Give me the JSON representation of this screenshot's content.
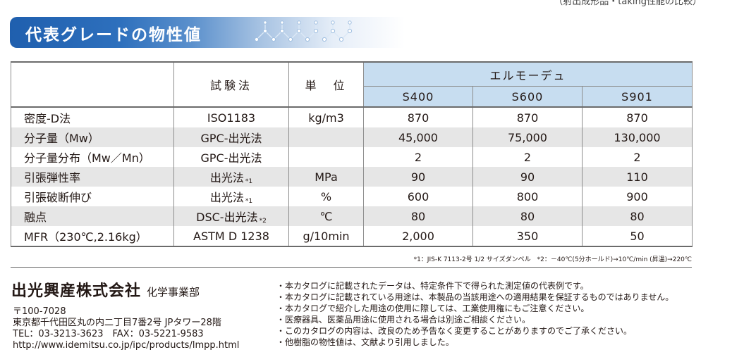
{
  "header": {
    "top_cut_text": "（射出成形品・taking性能の比較）",
    "title": "代表グレードの物性値"
  },
  "table": {
    "method_header": "試験法",
    "unit_header": "単　位",
    "product_header": "エルモーデュ",
    "grades": [
      "S400",
      "S600",
      "S901"
    ],
    "rows": [
      {
        "property": "密度-D法",
        "method": "ISO1183",
        "note": "",
        "unit": "kg/m3",
        "values": [
          "870",
          "870",
          "870"
        ]
      },
      {
        "property": "分子量（Mw）",
        "method": "GPC-出光法",
        "note": "",
        "unit": "",
        "values": [
          "45,000",
          "75,000",
          "130,000"
        ]
      },
      {
        "property": "分子量分布（Mw／Mn）",
        "method": "GPC-出光法",
        "note": "",
        "unit": "",
        "values": [
          "2",
          "2",
          "2"
        ]
      },
      {
        "property": "引張弾性率",
        "method": "出光法",
        "note": "*1",
        "unit": "MPa",
        "values": [
          "90",
          "90",
          "110"
        ]
      },
      {
        "property": "引張破断伸び",
        "method": "出光法",
        "note": "*1",
        "unit": "%",
        "values": [
          "600",
          "800",
          "900"
        ]
      },
      {
        "property": "融点",
        "method": "DSC-出光法",
        "note": "*2",
        "unit": "℃",
        "values": [
          "80",
          "80",
          "80"
        ]
      },
      {
        "property": "MFR（230℃,2.16kg）",
        "method": "ASTM D 1238",
        "note": "",
        "unit": "g/10min",
        "values": [
          "2,000",
          "350",
          "50"
        ]
      }
    ]
  },
  "footnote": "*1：JIS-K 7113-2号 1/2 サイズダンベル　*2：－40℃(5分ホールド)→10℃/min (昇温)→220℃",
  "company": {
    "name": "出光興産株式会社",
    "department": "化学事業部",
    "address_lines": [
      "〒100-7028",
      "東京都千代田区丸の内二丁目7番2号 JPタワー28階",
      "TEL：03-3213-3623　FAX：03-5221-9583",
      "http://www.idemitsu.co.jp/ipc/products/lmpp.html"
    ]
  },
  "notices": [
    "・本カタログに記載されたデータは、特定条件下で得られた測定値の代表例です。",
    "・本カタログに記載されている用途は、本製品の当該用途への適用結果を保証するものではありません。",
    "・本カタログで紹介した用途の使用に際しては、工業使用権にもご注意ください。",
    "・医療器具、医薬品用途に使用される場合は別途ご相談ください。",
    "・このカタログの内容は、改良のため予告なく変更することがありますのでご了承ください。",
    "・他樹脂の物性値は、文献より引用しました。"
  ],
  "colors": {
    "title_band": "#1f5fae",
    "header_blue": "#c7ddf0",
    "row_gray": "#e6e6e6"
  }
}
